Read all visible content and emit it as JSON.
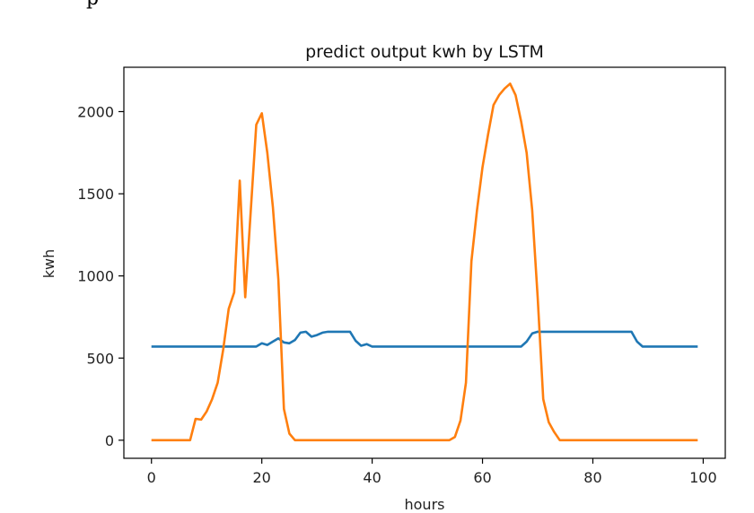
{
  "corner_text": "p",
  "chart_data": {
    "type": "line",
    "title": "predict output kwh by LSTM",
    "xlabel": "hours",
    "ylabel": "kwh",
    "xlim": [
      -5,
      104
    ],
    "ylim": [
      -110,
      2270
    ],
    "xticks": [
      0,
      20,
      40,
      60,
      80,
      100
    ],
    "yticks": [
      0,
      500,
      1000,
      1500,
      2000
    ],
    "grid": false,
    "series": [
      {
        "color": "#1f77b4",
        "x": [
          0,
          19,
          20,
          21,
          22,
          23,
          24,
          25,
          26,
          27,
          28,
          29,
          30,
          31,
          32,
          33,
          34,
          35,
          36,
          37,
          38,
          39,
          40,
          41,
          67,
          68,
          69,
          70,
          87,
          88,
          89,
          99
        ],
        "y": [
          570,
          570,
          590,
          580,
          600,
          620,
          595,
          590,
          610,
          655,
          660,
          630,
          640,
          655,
          660,
          660,
          660,
          660,
          660,
          605,
          575,
          585,
          570,
          570,
          570,
          600,
          650,
          660,
          660,
          600,
          570,
          570
        ]
      },
      {
        "color": "#ff7f0e",
        "x": [
          0,
          7,
          8,
          9,
          10,
          11,
          12,
          13,
          14,
          15,
          16,
          17,
          18,
          19,
          20,
          21,
          22,
          23,
          24,
          25,
          26,
          27,
          54,
          55,
          56,
          57,
          58,
          59,
          60,
          61,
          62,
          63,
          64,
          65,
          66,
          67,
          68,
          69,
          70,
          71,
          72,
          73,
          74,
          99
        ],
        "y": [
          0,
          0,
          130,
          125,
          175,
          250,
          350,
          550,
          800,
          900,
          1580,
          870,
          1400,
          1920,
          1990,
          1750,
          1420,
          980,
          190,
          40,
          0,
          0,
          0,
          20,
          120,
          350,
          1090,
          1400,
          1660,
          1860,
          2040,
          2100,
          2140,
          2170,
          2100,
          1940,
          1750,
          1400,
          870,
          250,
          110,
          50,
          0,
          0
        ]
      }
    ]
  }
}
